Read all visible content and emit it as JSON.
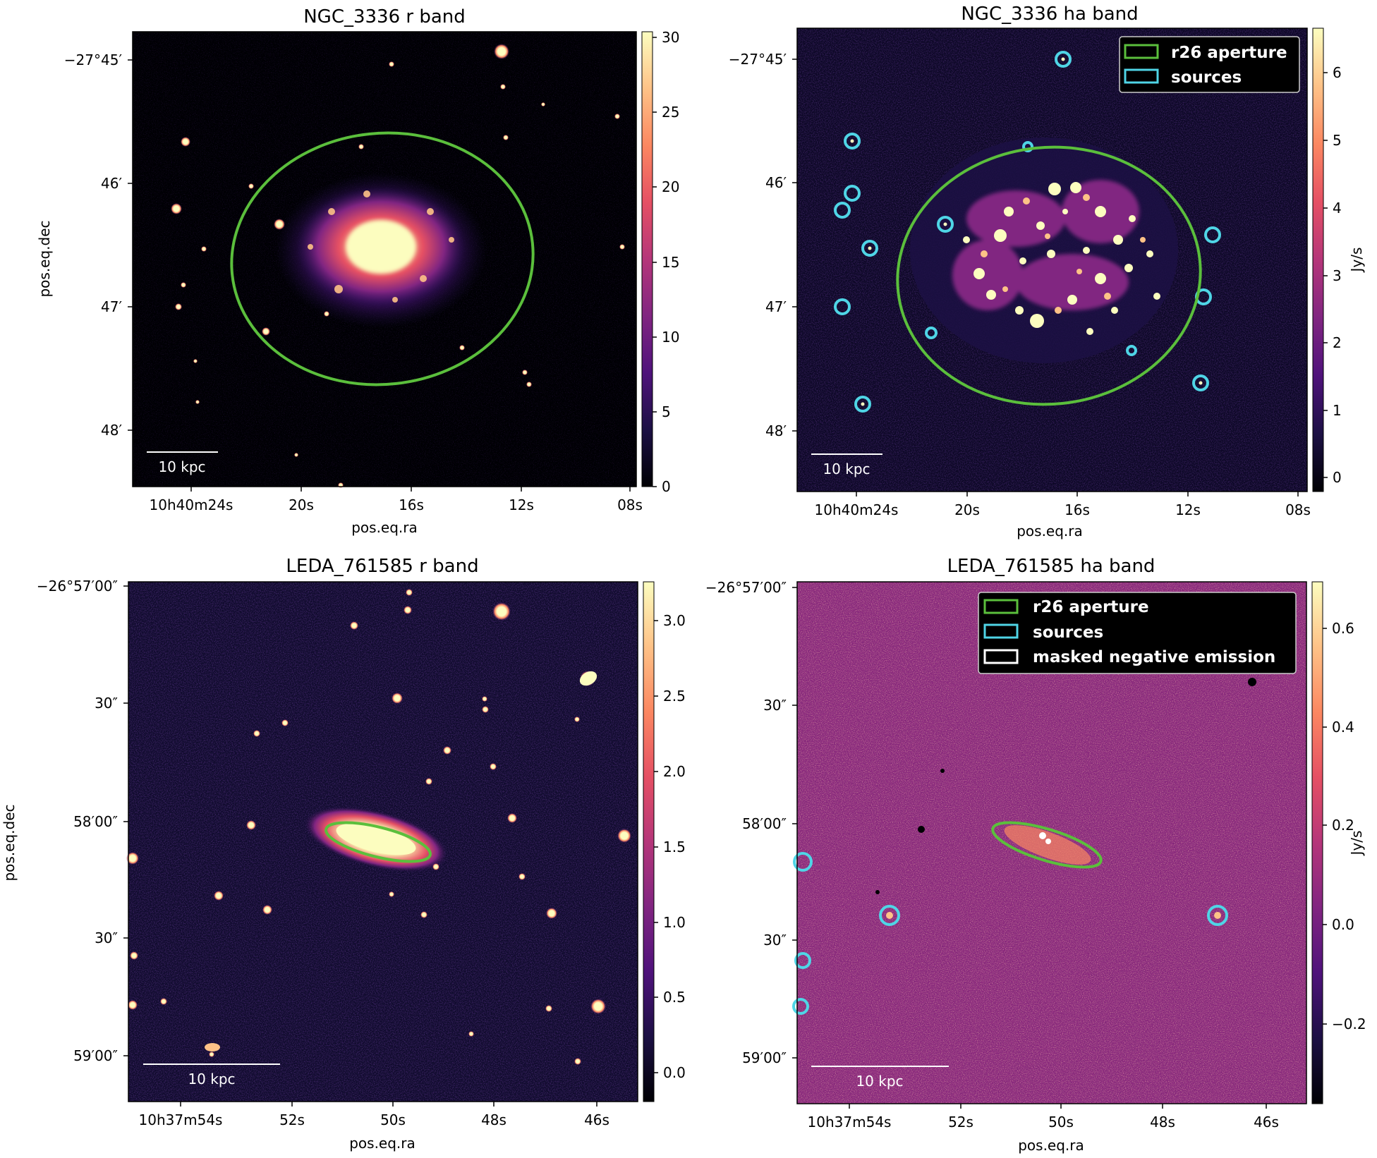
{
  "colors": {
    "aperture": "#5bbf3c",
    "sources": "#4fd5e6",
    "masked": "#ffffff",
    "colormap": [
      "#000004",
      "#1c1044",
      "#4f127b",
      "#812581",
      "#b5367a",
      "#e55064",
      "#fb8761",
      "#fec287",
      "#fcfdbf"
    ]
  },
  "panels": [
    {
      "id": "ngc3336-r",
      "title": "NGC_3336 r band",
      "xlabel": "pos.eq.ra",
      "ylabel": "pos.eq.dec",
      "xticks": [
        "10h40m24s",
        "20s",
        "16s",
        "12s",
        "08s"
      ],
      "yticks": [
        "−27°45′",
        "46′",
        "47′",
        "48′"
      ],
      "colorbar": {
        "label": "",
        "ticks": [
          "0",
          "5",
          "10",
          "15",
          "20",
          "25",
          "30"
        ]
      },
      "scalebar": "10 kpc",
      "legend": []
    },
    {
      "id": "ngc3336-ha",
      "title": "NGC_3336 ha band",
      "xlabel": "pos.eq.ra",
      "ylabel": "",
      "xticks": [
        "10h40m24s",
        "20s",
        "16s",
        "12s",
        "08s"
      ],
      "yticks": [
        "−27°45′",
        "46′",
        "47′",
        "48′"
      ],
      "colorbar": {
        "label": "Jy/s",
        "ticks": [
          "0",
          "1",
          "2",
          "3",
          "4",
          "5",
          "6"
        ]
      },
      "scalebar": "10 kpc",
      "legend": [
        "r26 aperture",
        "sources"
      ]
    },
    {
      "id": "leda761585-r",
      "title": "LEDA_761585 r band",
      "xlabel": "pos.eq.ra",
      "ylabel": "pos.eq.dec",
      "xticks": [
        "10h37m54s",
        "52s",
        "50s",
        "48s",
        "46s"
      ],
      "yticks": [
        "−26°57′00″",
        "30″",
        "58′00″",
        "30″",
        "59′00″"
      ],
      "colorbar": {
        "label": "",
        "ticks": [
          "0.0",
          "0.5",
          "1.0",
          "1.5",
          "2.0",
          "2.5",
          "3.0"
        ]
      },
      "scalebar": "10 kpc",
      "legend": []
    },
    {
      "id": "leda761585-ha",
      "title": "LEDA_761585 ha band",
      "xlabel": "pos.eq.ra",
      "ylabel": "",
      "xticks": [
        "10h37m54s",
        "52s",
        "50s",
        "48s",
        "46s"
      ],
      "yticks": [
        "−26°57′00″",
        "30″",
        "58′00″",
        "30″",
        "59′00″"
      ],
      "colorbar": {
        "label": "Jy/s",
        "ticks": [
          "−0.2",
          "0.0",
          "0.2",
          "0.4",
          "0.6"
        ]
      },
      "scalebar": "10 kpc",
      "legend": [
        "r26 aperture",
        "sources",
        "masked negative emission"
      ]
    }
  ]
}
